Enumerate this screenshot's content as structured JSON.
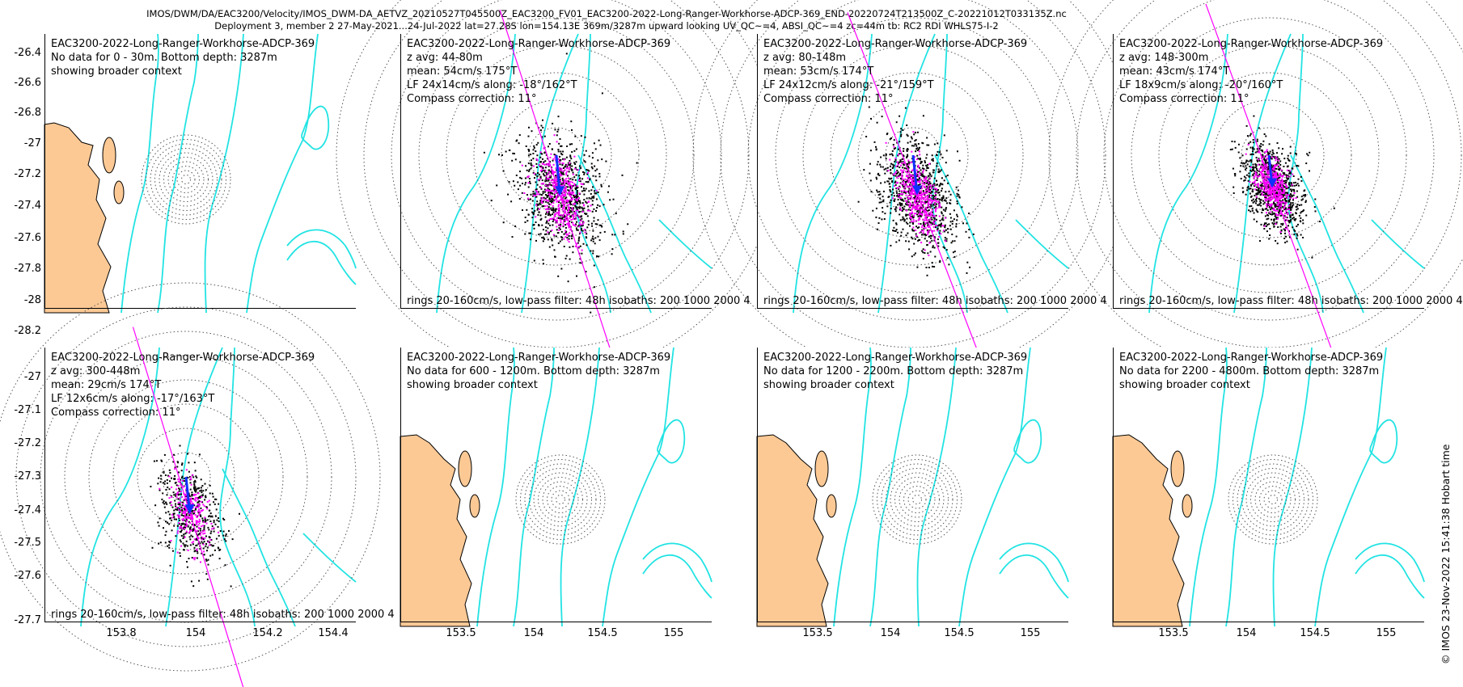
{
  "header": {
    "line1": "IMOS/DWM/DA/EAC3200/Velocity/IMOS_DWM-DA_AETVZ_20210527T045500Z_EAC3200_FV01_EAC3200-2022-Long-Ranger-Workhorse-ADCP-369_END-20220724T213500Z_C-20221012T033135Z.nc",
    "line2": "Deployment 3, member 2 27-May-2021...24-Jul-2022 lat=27.28S lon=154.13E 369m/3287m upward looking UV_QC~=4, ABSI_QC~=4 zc=44m tb: RC2 RDI WHLS75-I-2"
  },
  "stamp": "© IMOS 23-Nov-2022 15:41:38 Hobart time",
  "colors": {
    "land": "#fcc995",
    "isobath": "#22e3e3",
    "rings": "#555555",
    "scatter_black": "#000000",
    "scatter_magenta": "#ff00ff",
    "mean_arrow": "#1030ff",
    "principal_axis": "#ff00ff"
  },
  "chart_data": [
    {
      "type": "scatter",
      "id": "p1",
      "has_data": false,
      "lines": [
        "EAC3200-2022-Long-Ranger-Workhorse-ADCP-369",
        "No data for 0 - 30m. Bottom depth: 3287m",
        "showing broader context"
      ],
      "bottom": "",
      "yticks": [
        "-26.4",
        "-26.6",
        "-26.8",
        "-27",
        "-27.2",
        "-27.4",
        "-27.6",
        "-27.8",
        "-28",
        "-28.2"
      ],
      "xticks": []
    },
    {
      "type": "scatter",
      "id": "p2",
      "has_data": true,
      "lines": [
        "EAC3200-2022-Long-Ranger-Workhorse-ADCP-369",
        "z avg: 44-80m",
        "mean: 54cm/s 175°T",
        "LF 24x14cm/s along: -18°/162°T",
        "Compass correction: 11°"
      ],
      "bottom": "rings 20-160cm/s, low-pass filter: 48h isobaths: 200 1000 2000 4",
      "mean_speed_cms": 54,
      "mean_dir_degT": 175,
      "lf_major_cms": 24,
      "lf_minor_cms": 14,
      "along_dir_degT": 162,
      "yticks": [],
      "xticks": []
    },
    {
      "type": "scatter",
      "id": "p3",
      "has_data": true,
      "lines": [
        "EAC3200-2022-Long-Ranger-Workhorse-ADCP-369",
        "z avg: 80-148m",
        "mean: 53cm/s 174°T",
        "LF 24x12cm/s along: -21°/159°T",
        "Compass correction: 11°"
      ],
      "bottom": "rings 20-160cm/s, low-pass filter: 48h isobaths: 200 1000 2000 4",
      "mean_speed_cms": 53,
      "mean_dir_degT": 174,
      "lf_major_cms": 24,
      "lf_minor_cms": 12,
      "along_dir_degT": 159,
      "yticks": [],
      "xticks": []
    },
    {
      "type": "scatter",
      "id": "p4",
      "has_data": true,
      "lines": [
        "EAC3200-2022-Long-Ranger-Workhorse-ADCP-369",
        "z avg: 148-300m",
        "mean: 43cm/s 174°T",
        "LF 18x9cm/s along: -20°/160°T",
        "Compass correction: 11°"
      ],
      "bottom": "rings 20-160cm/s, low-pass filter: 48h isobaths: 200 1000 2000 4",
      "mean_speed_cms": 43,
      "mean_dir_degT": 174,
      "lf_major_cms": 18,
      "lf_minor_cms": 9,
      "along_dir_degT": 160,
      "yticks": [],
      "xticks": []
    },
    {
      "type": "scatter",
      "id": "p5",
      "has_data": true,
      "lines": [
        "EAC3200-2022-Long-Ranger-Workhorse-ADCP-369",
        "z avg: 300-448m",
        "mean: 29cm/s 174°T",
        "LF 12x6cm/s along: -17°/163°T",
        "Compass correction: 11°"
      ],
      "bottom": "rings 20-160cm/s, low-pass filter: 48h isobaths: 200 1000 2000 4",
      "mean_speed_cms": 29,
      "mean_dir_degT": 174,
      "lf_major_cms": 12,
      "lf_minor_cms": 6,
      "along_dir_degT": 163,
      "yticks": [
        "-27",
        "-27.1",
        "-27.2",
        "-27.3",
        "-27.4",
        "-27.5",
        "-27.6",
        "-27.7"
      ],
      "xticks": [
        "153.8",
        "154",
        "154.2",
        "154.4"
      ]
    },
    {
      "type": "scatter",
      "id": "p6",
      "has_data": false,
      "lines": [
        "EAC3200-2022-Long-Ranger-Workhorse-ADCP-369",
        "No data for 600 - 1200m. Bottom depth: 3287m",
        "showing broader context"
      ],
      "bottom": "",
      "yticks": [],
      "xticks": [
        "153.5",
        "154",
        "154.5",
        "155"
      ]
    },
    {
      "type": "scatter",
      "id": "p7",
      "has_data": false,
      "lines": [
        "EAC3200-2022-Long-Ranger-Workhorse-ADCP-369",
        "No data for 1200 - 2200m. Bottom depth: 3287m",
        "showing broader context"
      ],
      "bottom": "",
      "yticks": [],
      "xticks": [
        "153.5",
        "154",
        "154.5",
        "155"
      ]
    },
    {
      "type": "scatter",
      "id": "p8",
      "has_data": false,
      "lines": [
        "EAC3200-2022-Long-Ranger-Workhorse-ADCP-369",
        "No data for 2200 - 4800m. Bottom depth: 3287m",
        "showing broader context"
      ],
      "bottom": "",
      "yticks": [],
      "xticks": [
        "153.5",
        "154",
        "154.5",
        "155"
      ]
    }
  ]
}
